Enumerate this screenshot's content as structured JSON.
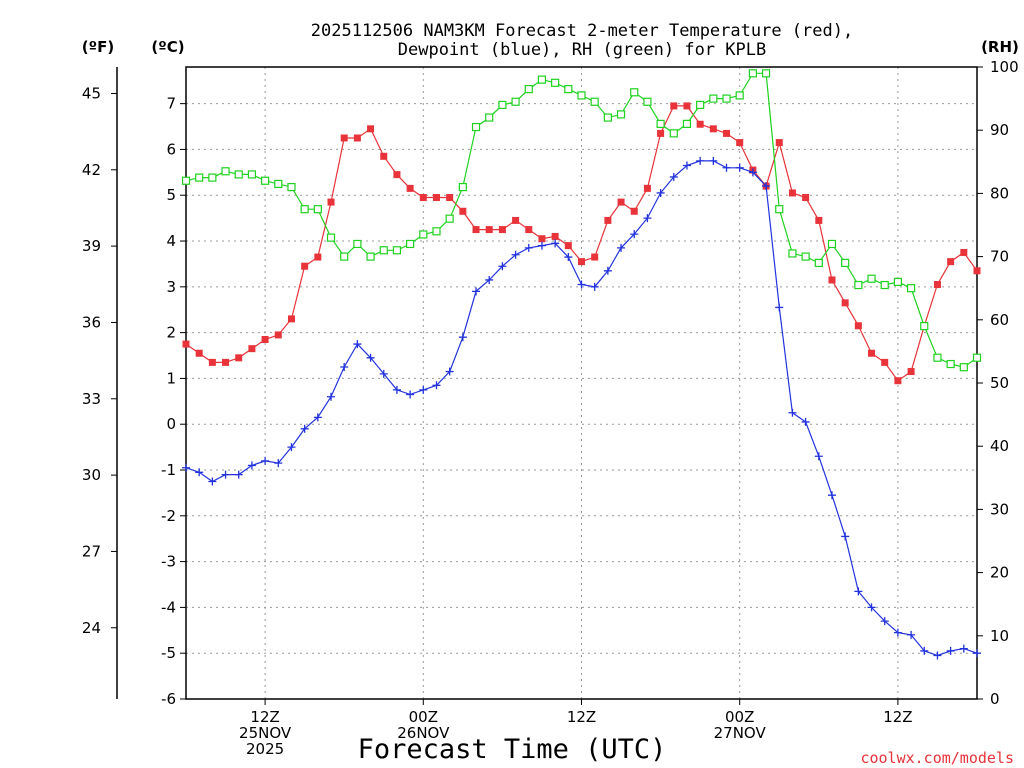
{
  "chart_data": {
    "type": "line",
    "title_line1": "2025112506 NAM3KM Forecast 2-meter Temperature (red),",
    "title_line2": "Dewpoint (blue), RH (green) for KPLB",
    "unit_f": "(ºF)",
    "unit_c": "(ºC)",
    "unit_rh": "(RH)",
    "xlabel": "Forecast Time (UTC)",
    "credit": "coolwx.com/models",
    "x_range": [
      0,
      60
    ],
    "y_celsius_range": [
      -6,
      7.8
    ],
    "y_rh_range": [
      0,
      100
    ],
    "y_celsius_ticks": [
      -6,
      -5,
      -4,
      -3,
      -2,
      -1,
      0,
      1,
      2,
      3,
      4,
      5,
      6,
      7
    ],
    "y_fahrenheit_ticks": [
      24,
      27,
      30,
      33,
      36,
      39,
      42,
      45
    ],
    "y_rh_ticks": [
      0,
      10,
      20,
      30,
      40,
      50,
      60,
      70,
      80,
      90,
      100
    ],
    "grid": true,
    "x_ticks": [
      {
        "x": 6,
        "lines": [
          "12Z",
          "25NOV",
          "2025"
        ]
      },
      {
        "x": 18,
        "lines": [
          "00Z",
          "26NOV"
        ]
      },
      {
        "x": 30,
        "lines": [
          "12Z"
        ]
      },
      {
        "x": 42,
        "lines": [
          "00Z",
          "27NOV"
        ]
      },
      {
        "x": 54,
        "lines": [
          "12Z"
        ]
      }
    ],
    "series": [
      {
        "key": "temperature",
        "color": "#e8333a",
        "marker": "filled-square",
        "values": [
          1.75,
          1.55,
          1.35,
          1.35,
          1.45,
          1.65,
          1.85,
          1.95,
          2.3,
          3.45,
          3.65,
          4.85,
          6.25,
          6.25,
          6.45,
          5.85,
          5.45,
          5.15,
          4.95,
          4.95,
          4.95,
          4.65,
          4.25,
          4.25,
          4.25,
          4.45,
          4.25,
          4.05,
          4.1,
          3.9,
          3.55,
          3.65,
          4.45,
          4.85,
          4.65,
          5.15,
          6.35,
          6.95,
          6.95,
          6.55,
          6.45,
          6.35,
          6.15,
          5.55,
          5.2,
          6.15,
          5.05,
          4.95,
          4.45,
          3.15,
          2.65,
          2.15,
          1.55,
          1.35,
          0.95,
          1.15,
          2.15,
          3.05,
          3.55,
          3.75,
          3.35
        ]
      },
      {
        "key": "dewpoint",
        "color": "#2233dd",
        "marker": "plus",
        "values": [
          -0.95,
          -1.05,
          -1.25,
          -1.1,
          -1.1,
          -0.9,
          -0.8,
          -0.85,
          -0.5,
          -0.1,
          0.15,
          0.6,
          1.25,
          1.75,
          1.45,
          1.1,
          0.75,
          0.65,
          0.75,
          0.85,
          1.15,
          1.9,
          2.9,
          3.15,
          3.45,
          3.7,
          3.85,
          3.9,
          3.95,
          3.65,
          3.05,
          3.0,
          3.35,
          3.85,
          4.15,
          4.5,
          5.05,
          5.4,
          5.65,
          5.75,
          5.75,
          5.6,
          5.6,
          5.5,
          5.2,
          2.55,
          0.25,
          0.05,
          -0.7,
          -1.55,
          -2.45,
          -3.65,
          -4.0,
          -4.3,
          -4.55,
          -4.6,
          -4.95,
          -5.05,
          -4.95,
          -4.9,
          -5.0
        ]
      },
      {
        "key": "rh",
        "color": "#1ed21e",
        "marker": "open-square",
        "values": [
          82,
          82.5,
          82.5,
          83.5,
          83,
          83,
          82,
          81.5,
          81,
          77.5,
          77.5,
          73,
          70,
          72,
          70,
          71,
          71,
          72,
          73.5,
          74,
          76,
          81,
          90.5,
          92,
          94,
          94.5,
          96.5,
          98,
          97.5,
          96.5,
          95.5,
          94.5,
          92,
          92.5,
          96,
          94.5,
          91,
          89.5,
          91,
          94,
          95,
          95,
          95.5,
          99,
          99,
          77.5,
          70.5,
          70,
          69,
          72,
          69,
          65.5,
          66.5,
          65.5,
          66,
          65,
          59,
          54,
          53,
          52.5,
          54
        ]
      }
    ]
  }
}
